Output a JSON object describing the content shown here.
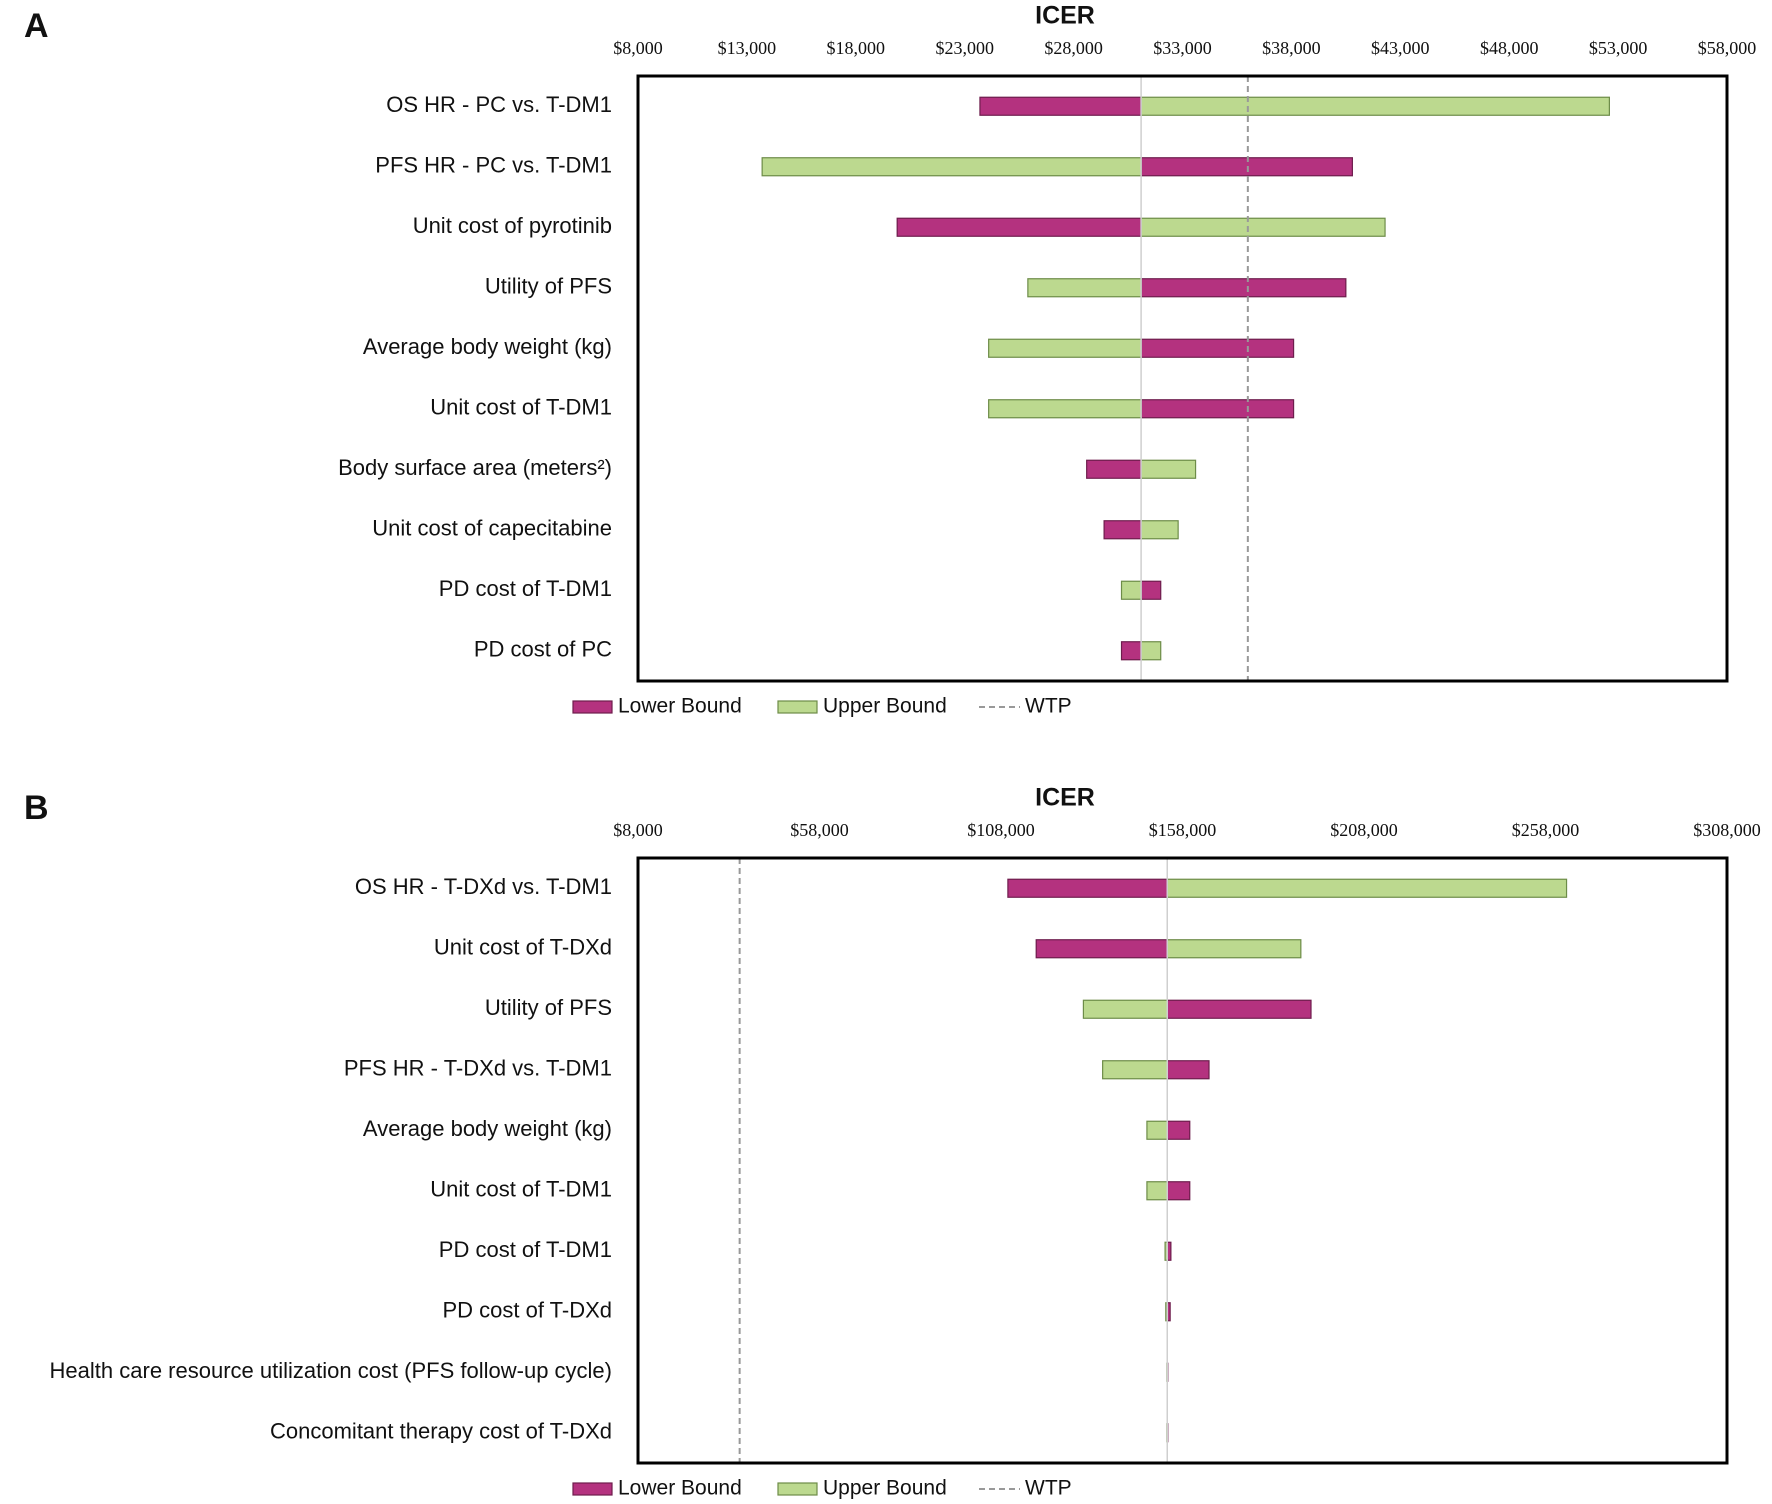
{
  "chart_data": [
    {
      "type": "tornado",
      "panel_label": "A",
      "title": "ICER",
      "categories": [
        "OS HR - PC vs. T-DM1",
        "PFS HR - PC vs. T-DM1",
        "Unit cost of pyrotinib",
        "Utility of PFS",
        "Average body weight (kg)",
        "Unit cost of T-DM1",
        "Body surface area (meters²)",
        "Unit cost of capecitabine",
        "PD cost of T-DM1",
        "PD cost of PC"
      ],
      "base_value": 31100,
      "series": [
        {
          "name": "Lower Bound",
          "color": "#b4327f",
          "values": [
            23700,
            40800,
            19900,
            40500,
            38100,
            38100,
            28600,
            29400,
            32000,
            30200
          ]
        },
        {
          "name": "Upper Bound",
          "color": "#bcd98f",
          "values": [
            52600,
            13700,
            42300,
            25900,
            24100,
            24100,
            33600,
            32800,
            30200,
            32000
          ]
        }
      ],
      "reference_line": {
        "name": "WTP",
        "value": 36000
      },
      "xlim": [
        8000,
        58000
      ],
      "xticks": [
        {
          "value": 8000,
          "label": "$8,000"
        },
        {
          "value": 13000,
          "label": "$13,000"
        },
        {
          "value": 18000,
          "label": "$18,000"
        },
        {
          "value": 23000,
          "label": "$23,000"
        },
        {
          "value": 28000,
          "label": "$28,000"
        },
        {
          "value": 33000,
          "label": "$33,000"
        },
        {
          "value": 38000,
          "label": "$38,000"
        },
        {
          "value": 43000,
          "label": "$43,000"
        },
        {
          "value": 48000,
          "label": "$48,000"
        },
        {
          "value": 53000,
          "label": "$53,000"
        },
        {
          "value": 58000,
          "label": "$58,000"
        }
      ]
    },
    {
      "type": "tornado",
      "panel_label": "B",
      "title": "ICER",
      "categories": [
        "OS HR - T-DXd vs. T-DM1",
        "Unit cost of T-DXd",
        "Utility of PFS",
        "PFS HR - T-DXd vs. T-DM1",
        "Average body weight (kg)",
        "Unit cost of T-DM1",
        "PD cost of T-DM1",
        "PD cost of T-DXd",
        "Health care resource utilization cost (PFS follow-up cycle)",
        "Concomitant therapy cost of T-DXd"
      ],
      "base_value": 153800,
      "series": [
        {
          "name": "Lower Bound",
          "color": "#b4327f",
          "values": [
            109900,
            117700,
            193400,
            165300,
            160000,
            160000,
            154800,
            154600,
            153900,
            153900
          ]
        },
        {
          "name": "Upper Bound",
          "color": "#bcd98f",
          "values": [
            263800,
            190600,
            130700,
            136000,
            148200,
            148200,
            153200,
            153400,
            153700,
            153700
          ]
        }
      ],
      "reference_line": {
        "name": "WTP",
        "value": 36000
      },
      "xlim": [
        8000,
        308000
      ],
      "xticks": [
        {
          "value": 8000,
          "label": "$8,000"
        },
        {
          "value": 58000,
          "label": "$58,000"
        },
        {
          "value": 108000,
          "label": "$108,000"
        },
        {
          "value": 158000,
          "label": "$158,000"
        },
        {
          "value": 208000,
          "label": "$208,000"
        },
        {
          "value": 258000,
          "label": "$258,000"
        },
        {
          "value": 308000,
          "label": "$308,000"
        }
      ]
    }
  ]
}
